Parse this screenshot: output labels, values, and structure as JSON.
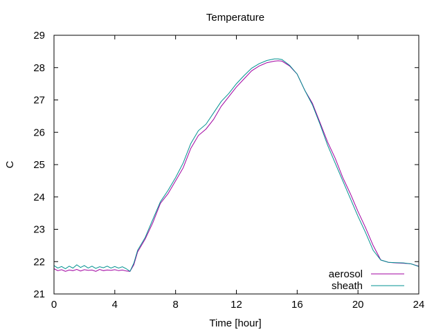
{
  "chart_data": {
    "type": "line",
    "title": "Temperature",
    "xlabel": "Time [hour]",
    "ylabel": "C",
    "xlim": [
      0,
      24
    ],
    "ylim": [
      21,
      29
    ],
    "xticks": [
      0,
      4,
      8,
      12,
      16,
      20,
      24
    ],
    "yticks": [
      21,
      22,
      23,
      24,
      25,
      26,
      27,
      28,
      29
    ],
    "grid": false,
    "legend_position": "bottom-right",
    "series": [
      {
        "name": "aerosol",
        "color": "#a000a0",
        "x": [
          0,
          0.25,
          0.5,
          0.75,
          1,
          1.25,
          1.5,
          1.75,
          2,
          2.25,
          2.5,
          2.75,
          3,
          3.25,
          3.5,
          3.75,
          4,
          4.25,
          4.5,
          4.75,
          5,
          5.25,
          5.5,
          6,
          6.5,
          7,
          7.5,
          8,
          8.5,
          9,
          9.5,
          10,
          10.5,
          11,
          11.5,
          12,
          12.5,
          13,
          13.5,
          14,
          14.5,
          14.75,
          15,
          15.5,
          16,
          16.5,
          17,
          17.5,
          18,
          18.5,
          19,
          19.5,
          20,
          20.5,
          21,
          21.5,
          22,
          22.5,
          23,
          23.5,
          24
        ],
        "values": [
          21.78,
          21.72,
          21.75,
          21.7,
          21.74,
          21.72,
          21.76,
          21.71,
          21.75,
          21.73,
          21.74,
          21.7,
          21.76,
          21.72,
          21.74,
          21.73,
          21.75,
          21.72,
          21.74,
          21.71,
          21.7,
          21.9,
          22.3,
          22.7,
          23.2,
          23.8,
          24.1,
          24.5,
          24.9,
          25.5,
          25.9,
          26.1,
          26.4,
          26.8,
          27.1,
          27.4,
          27.65,
          27.9,
          28.05,
          28.15,
          28.2,
          28.21,
          28.2,
          28.05,
          27.8,
          27.3,
          26.9,
          26.3,
          25.7,
          25.2,
          24.6,
          24.1,
          23.55,
          23.05,
          22.5,
          22.05,
          21.98,
          21.96,
          21.95,
          21.93,
          21.86
        ]
      },
      {
        "name": "sheath",
        "color": "#009090",
        "x": [
          0,
          0.25,
          0.5,
          0.75,
          1,
          1.25,
          1.5,
          1.75,
          2,
          2.25,
          2.5,
          2.75,
          3,
          3.25,
          3.5,
          3.75,
          4,
          4.25,
          4.5,
          4.75,
          5,
          5.25,
          5.5,
          6,
          6.5,
          7,
          7.5,
          8,
          8.5,
          9,
          9.5,
          10,
          10.5,
          11,
          11.5,
          12,
          12.5,
          13,
          13.5,
          14,
          14.5,
          14.75,
          15,
          15.5,
          16,
          16.5,
          17,
          17.5,
          18,
          18.5,
          19,
          19.5,
          20,
          20.5,
          21,
          21.5,
          22,
          22.5,
          23,
          23.5,
          24
        ],
        "values": [
          21.88,
          21.8,
          21.85,
          21.78,
          21.86,
          21.8,
          21.9,
          21.82,
          21.88,
          21.8,
          21.86,
          21.79,
          21.84,
          21.81,
          21.86,
          21.8,
          21.85,
          21.8,
          21.84,
          21.78,
          21.7,
          21.95,
          22.35,
          22.75,
          23.3,
          23.85,
          24.2,
          24.6,
          25.05,
          25.65,
          26.05,
          26.25,
          26.6,
          26.95,
          27.2,
          27.5,
          27.75,
          27.98,
          28.12,
          28.22,
          28.27,
          28.27,
          28.25,
          28.07,
          27.8,
          27.3,
          26.85,
          26.25,
          25.6,
          25.05,
          24.5,
          23.95,
          23.4,
          22.9,
          22.35,
          22.05,
          21.98,
          21.97,
          21.96,
          21.93,
          21.85
        ]
      }
    ]
  }
}
